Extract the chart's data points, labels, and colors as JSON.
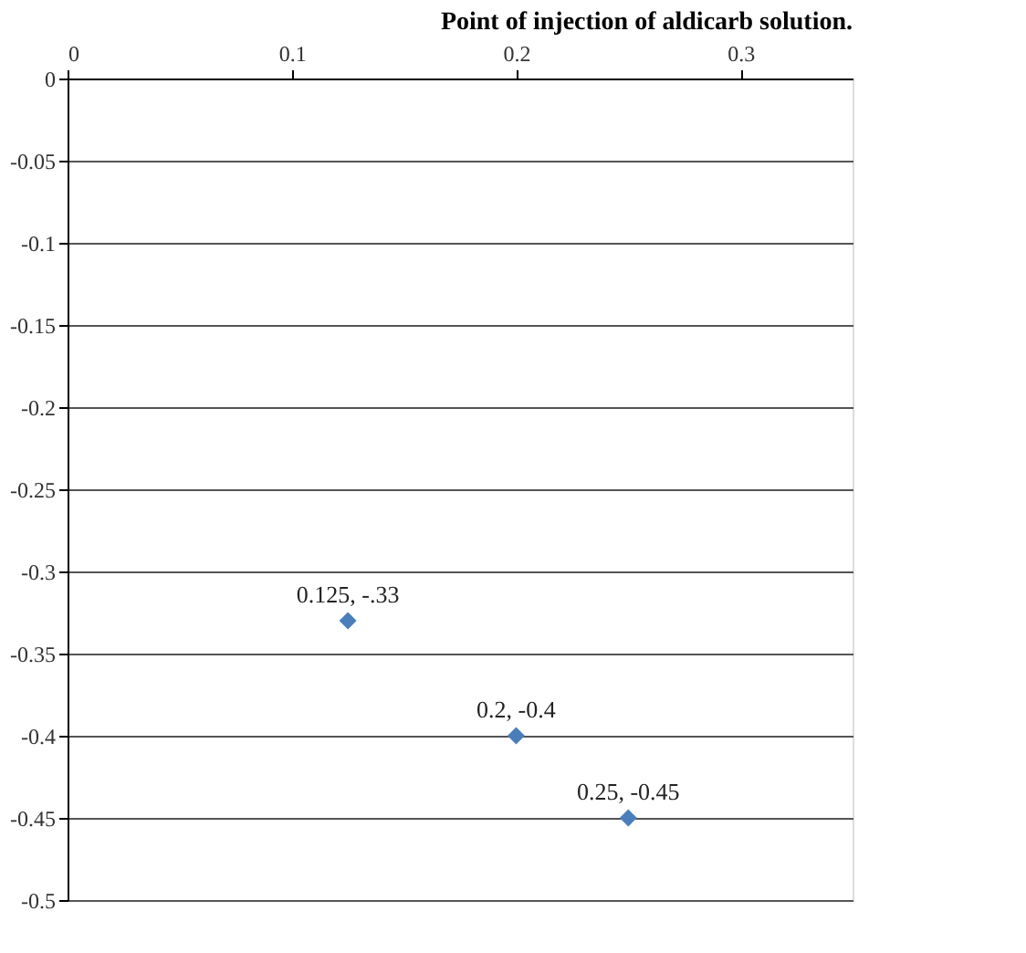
{
  "chart_data": {
    "type": "scatter",
    "annotations": [
      "Point of injection of aldicarb solution."
    ],
    "x": [
      0.125,
      0.2,
      0.25
    ],
    "series": [
      {
        "color": "#4a7ebb",
        "values": [
          -0.33,
          -0.4,
          -0.45
        ],
        "value_labels": [
          "0.125, -.33",
          "0.2, -0.4",
          "0.25, -0.45"
        ]
      }
    ],
    "xlim": [
      0,
      0.35
    ],
    "xticks": [
      0,
      0.1,
      0.2,
      0.3
    ],
    "ylim": [
      -0.5,
      0
    ],
    "yticks": [
      0,
      -0.05,
      -0.1,
      -0.15,
      -0.2,
      -0.25,
      -0.3,
      -0.35,
      -0.4,
      -0.45,
      -0.5
    ],
    "grid": "y",
    "marker": "diamond",
    "legend": false
  }
}
